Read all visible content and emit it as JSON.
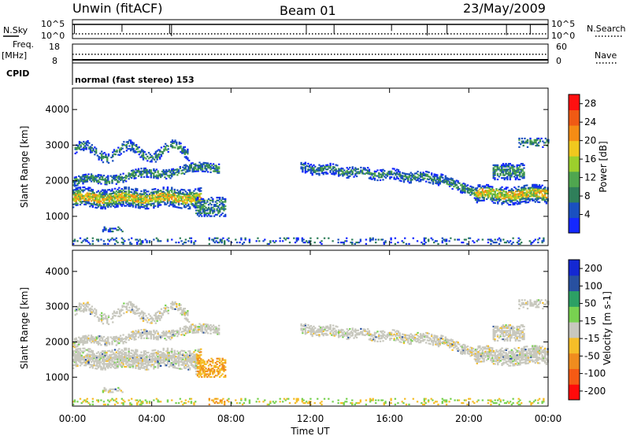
{
  "header": {
    "site": "Unwin (fitACF)",
    "beam": "Beam 01",
    "date": "23/May/2009"
  },
  "top_panels": {
    "nsky_label": "N.Sky",
    "nsky_ticks": [
      "10^5",
      "10^0"
    ],
    "nsearch_label": "N.Search",
    "nsearch_ticks": [
      "10^5",
      "10^0"
    ],
    "freq_label": "Freq.",
    "freq_unit": "[MHz]",
    "freq_ticks": [
      "18",
      "8"
    ],
    "nave_label": "Nave",
    "nave_ticks": [
      "60",
      "0"
    ],
    "cpid_label": "CPID",
    "cpid_value": "normal (fast stereo) 153"
  },
  "colors": {
    "power_scale": [
      "#1428ff",
      "#1a50c0",
      "#2f7f5a",
      "#4fa64f",
      "#9ccf2c",
      "#f0c81e",
      "#f58c14",
      "#f05a14",
      "#ff1010"
    ],
    "velocity_scale": [
      "#ff0a0a",
      "#f55a14",
      "#f08c1e",
      "#f5be28",
      "#c8c8be",
      "#78d250",
      "#2ca064",
      "#2850a0",
      "#1428d2"
    ]
  },
  "chart_data": [
    {
      "type": "heatmap",
      "name": "power",
      "xlabel": "",
      "ylabel": "Slant Range [km]",
      "xlim": [
        "00:00",
        "24:00"
      ],
      "ylim": [
        180,
        4600
      ],
      "yticks": [
        "1000",
        "2000",
        "3000",
        "4000"
      ],
      "colorbar_label": "Power [dB]",
      "colorbar_ticks": [
        "4",
        "8",
        "12",
        "16",
        "20",
        "24",
        "28"
      ],
      "colorbar_range": [
        0,
        30
      ]
    },
    {
      "type": "heatmap",
      "name": "velocity",
      "xlabel": "Time UT",
      "ylabel": "Slant Range [km]",
      "xticks": [
        "00:00",
        "04:00",
        "08:00",
        "12:00",
        "16:00",
        "20:00",
        "00:00"
      ],
      "xlim": [
        "00:00",
        "24:00"
      ],
      "ylim": [
        180,
        4600
      ],
      "yticks": [
        "1000",
        "2000",
        "3000",
        "4000"
      ],
      "colorbar_label": "Velocity [m s-1]",
      "colorbar_ticks": [
        "-200",
        "-100",
        "-50",
        "-15",
        "15",
        "50",
        "100",
        "200"
      ],
      "colorbar_range": [
        -250,
        250
      ]
    }
  ]
}
